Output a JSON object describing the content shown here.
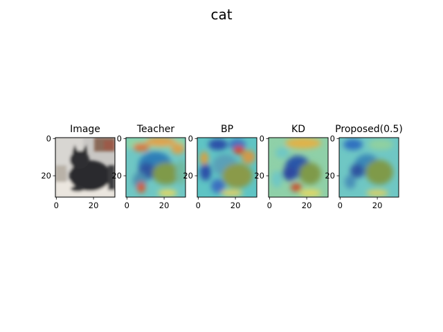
{
  "figure": {
    "title": "cat"
  },
  "chart_data": [
    {
      "type": "heatmap",
      "title": "Image",
      "content": "photo of a black cat sitting on a light floor (32x32)",
      "xlim": [
        0,
        31
      ],
      "ylim": [
        31,
        0
      ],
      "xticks": [
        "0",
        "20"
      ],
      "yticks": [
        "0",
        "20"
      ]
    },
    {
      "type": "heatmap",
      "title": "Teacher",
      "colormap": "jet",
      "overlay": "saliency map blended over the cat image",
      "xlim": [
        0,
        31
      ],
      "ylim": [
        31,
        0
      ],
      "xticks": [
        "0",
        "20"
      ],
      "yticks": [
        "0",
        "20"
      ]
    },
    {
      "type": "heatmap",
      "title": "BP",
      "colormap": "jet",
      "overlay": "saliency map blended over the cat image",
      "xlim": [
        0,
        31
      ],
      "ylim": [
        31,
        0
      ],
      "xticks": [
        "0",
        "20"
      ],
      "yticks": [
        "0",
        "20"
      ]
    },
    {
      "type": "heatmap",
      "title": "KD",
      "colormap": "jet",
      "overlay": "saliency map blended over the cat image",
      "xlim": [
        0,
        31
      ],
      "ylim": [
        31,
        0
      ],
      "xticks": [
        "0",
        "20"
      ],
      "yticks": [
        "0",
        "20"
      ]
    },
    {
      "type": "heatmap",
      "title": "Proposed(0.5)",
      "colormap": "jet",
      "overlay": "saliency map blended over the cat image",
      "xlim": [
        0,
        31
      ],
      "ylim": [
        31,
        0
      ],
      "xticks": [
        "0",
        "20"
      ],
      "yticks": [
        "0",
        "20"
      ]
    }
  ]
}
